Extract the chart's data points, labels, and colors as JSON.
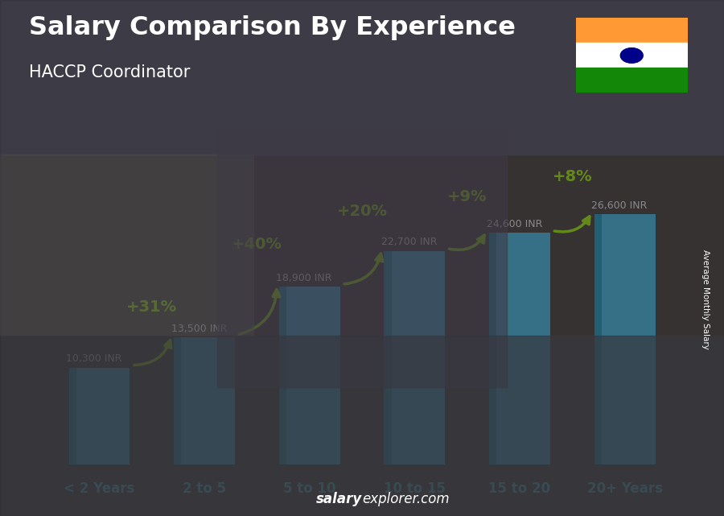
{
  "title": "Salary Comparison By Experience",
  "subtitle": "HACCP Coordinator",
  "categories": [
    "< 2 Years",
    "2 to 5",
    "5 to 10",
    "10 to 15",
    "15 to 20",
    "20+ Years"
  ],
  "values": [
    10300,
    13500,
    18900,
    22700,
    24600,
    26600
  ],
  "labels": [
    "10,300 INR",
    "13,500 INR",
    "18,900 INR",
    "22,700 INR",
    "24,600 INR",
    "26,600 INR"
  ],
  "pct_changes": [
    "+31%",
    "+40%",
    "+20%",
    "+9%",
    "+8%"
  ],
  "bar_color": "#45c8f0",
  "bar_color_dark": "#1a9ec0",
  "bar_color_light": "#85e0ff",
  "pct_color": "#aaff00",
  "title_color": "#ffffff",
  "ylabel_text": "Average Monthly Salary",
  "footer_bold": "salary",
  "footer_normal": "explorer.com",
  "flag_colors": [
    "#FF9933",
    "#FFFFFF",
    "#138808"
  ],
  "chakra_color": "#000088",
  "ylim": [
    0,
    34000
  ],
  "bg_color": "#4a4035"
}
